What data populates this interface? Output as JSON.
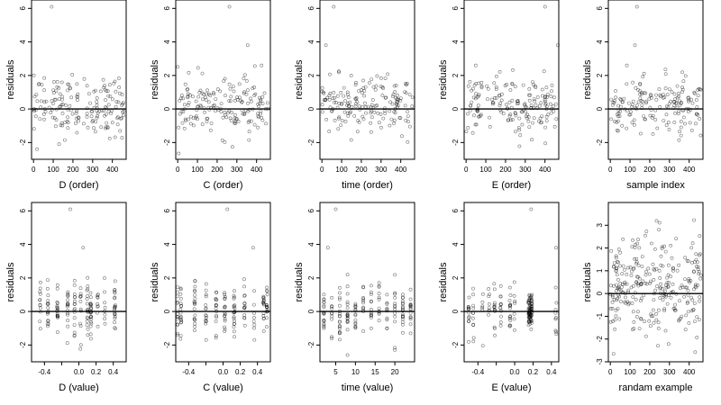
{
  "figure": {
    "ylabel": "residuals",
    "point_color": "#000000",
    "background": "#ffffff"
  },
  "chart_data": [
    {
      "type": "scatter",
      "title": "",
      "xlabel": "D (order)",
      "ylabel": "residuals",
      "xlim": [
        -10,
        470
      ],
      "ylim": [
        -3,
        6.5
      ],
      "xticks": [
        0,
        100,
        200,
        300,
        400
      ],
      "yticks": [
        -2,
        0,
        2,
        4,
        6
      ],
      "reference_line_y": 0,
      "grid": false,
      "n": 170,
      "outliers": [
        [
          92,
          6.1
        ],
        [
          130,
          -2.1
        ],
        [
          18,
          -2.4
        ]
      ],
      "distribution": "points cluster between -1.5 and 2.5 across x = 0–460, with a denser band near 0"
    },
    {
      "type": "scatter",
      "title": "",
      "xlabel": "C (order)",
      "ylabel": "residuals",
      "xlim": [
        -10,
        470
      ],
      "ylim": [
        -3,
        6.5
      ],
      "xticks": [
        0,
        100,
        200,
        300,
        400
      ],
      "yticks": [
        -2,
        0,
        2,
        4,
        6
      ],
      "reference_line_y": 0,
      "grid": false,
      "n": 170,
      "outliers": [
        [
          262,
          6.1
        ],
        [
          355,
          3.8
        ]
      ],
      "distribution": "points spread -2 to 2.5 across x = 0–460"
    },
    {
      "type": "scatter",
      "title": "",
      "xlabel": "time (order)",
      "ylabel": "residuals",
      "xlim": [
        -10,
        470
      ],
      "ylim": [
        -3,
        6.5
      ],
      "xticks": [
        0,
        100,
        200,
        300,
        400
      ],
      "yticks": [
        -2,
        0,
        2,
        4,
        6
      ],
      "reference_line_y": 0,
      "grid": false,
      "n": 170,
      "outliers": [
        [
          60,
          6.1
        ],
        [
          20,
          3.8
        ]
      ],
      "distribution": "points spread -2 to 2.5 across x = 0–460"
    },
    {
      "type": "scatter",
      "title": "",
      "xlabel": "E (order)",
      "ylabel": "residuals",
      "xlim": [
        -10,
        470
      ],
      "ylim": [
        -3,
        6.5
      ],
      "xticks": [
        0,
        100,
        200,
        300,
        400
      ],
      "yticks": [
        -2,
        0,
        2,
        4,
        6
      ],
      "reference_line_y": 0,
      "grid": false,
      "n": 170,
      "outliers": [
        [
          400,
          6.1
        ],
        [
          465,
          3.8
        ]
      ],
      "distribution": "points spread -2 to 2.5 across x = 0–460"
    },
    {
      "type": "scatter",
      "title": "",
      "xlabel": "sample index",
      "ylabel": "residuals",
      "xlim": [
        -10,
        470
      ],
      "ylim": [
        -3,
        6.5
      ],
      "xticks": [
        0,
        100,
        200,
        300,
        400
      ],
      "yticks": [
        -2,
        0,
        2,
        4,
        6
      ],
      "reference_line_y": 0,
      "grid": false,
      "n": 170,
      "outliers": [
        [
          135,
          6.1
        ],
        [
          125,
          3.8
        ]
      ],
      "distribution": "points spread -2 to 2.5 across x = 0–460"
    },
    {
      "type": "scatter",
      "title": "",
      "xlabel": "D (value)",
      "ylabel": "residuals",
      "xlim": [
        -0.55,
        0.55
      ],
      "ylim": [
        -3,
        6.5
      ],
      "xticks": [
        -0.4,
        -0.2,
        0.0,
        0.2,
        0.4
      ],
      "xticklabels": [
        "-0.4",
        "",
        "0.0",
        "0.2",
        "0.4"
      ],
      "yticks": [
        -2,
        0,
        2,
        4,
        6
      ],
      "reference_line_y": 0,
      "grid": false,
      "n": 170,
      "columns_x": [
        -0.45,
        -0.36,
        -0.25,
        -0.13,
        -0.05,
        0.02,
        0.1,
        0.14,
        0.22,
        0.3,
        0.42
      ],
      "outliers": [
        [
          -0.1,
          6.1
        ],
        [
          0.05,
          3.8
        ]
      ],
      "distribution": "points stacked in vertical columns at discrete x values, y from -2 to 2.5"
    },
    {
      "type": "scatter",
      "title": "",
      "xlabel": "C (value)",
      "ylabel": "residuals",
      "xlim": [
        -0.55,
        0.55
      ],
      "ylim": [
        -3,
        6.5
      ],
      "xticks": [
        -0.4,
        -0.2,
        0.0,
        0.2,
        0.4
      ],
      "xticklabels": [
        "-0.4",
        "",
        "0.0",
        "0.2",
        "0.4"
      ],
      "yticks": [
        -2,
        0,
        2,
        4,
        6
      ],
      "reference_line_y": 0,
      "grid": false,
      "n": 170,
      "columns_x": [
        -0.53,
        -0.49,
        -0.33,
        -0.2,
        -0.08,
        0.02,
        0.13,
        0.25,
        0.36,
        0.47,
        0.51
      ],
      "outliers": [
        [
          0.05,
          6.1
        ],
        [
          0.35,
          3.8
        ]
      ],
      "distribution": "points stacked in vertical columns at discrete x values, y from -2 to 2.5"
    },
    {
      "type": "scatter",
      "title": "",
      "xlabel": "time (value)",
      "ylabel": "residuals",
      "xlim": [
        1,
        25
      ],
      "ylim": [
        -3,
        6.5
      ],
      "xticks": [
        5,
        10,
        15,
        20
      ],
      "yticks": [
        -2,
        0,
        2,
        4,
        6
      ],
      "reference_line_y": 0,
      "grid": false,
      "n": 170,
      "columns_x": [
        2,
        4,
        6,
        8,
        10,
        12,
        14,
        16,
        18,
        20,
        22,
        24
      ],
      "outliers": [
        [
          5,
          6.1
        ],
        [
          3,
          3.8
        ]
      ],
      "distribution": "points stacked in vertical columns at discrete x values, y from -2 to 2.5"
    },
    {
      "type": "scatter",
      "title": "",
      "xlabel": "E (value)",
      "ylabel": "residuals",
      "xlim": [
        -0.55,
        0.48
      ],
      "ylim": [
        -3,
        6.5
      ],
      "xticks": [
        -0.4,
        -0.2,
        0.0,
        0.2,
        0.4
      ],
      "xticklabels": [
        "-0.4",
        "",
        "0.0",
        "0.2",
        "0.4"
      ],
      "yticks": [
        -2,
        0,
        2,
        4,
        6
      ],
      "reference_line_y": 0,
      "grid": false,
      "n": 170,
      "dense_cluster_x": 0.17,
      "outliers": [
        [
          0.18,
          6.1
        ],
        [
          0.45,
          3.8
        ]
      ],
      "distribution": "sparse columns on the left; very dense column at x ≈ 0.17, y from -1 to 1"
    },
    {
      "type": "scatter",
      "title": "",
      "xlabel": "randam example",
      "ylabel": "residuals",
      "xlim": [
        -10,
        470
      ],
      "ylim": [
        -3,
        4
      ],
      "xticks": [
        0,
        100,
        200,
        300,
        400
      ],
      "yticks": [
        -3,
        -2,
        -1,
        0,
        1,
        2,
        3
      ],
      "reference_line_y": 0,
      "grid": false,
      "n": 280,
      "outliers": [],
      "distribution": "points spread roughly uniformly/normally between -2.6 and 3.6 across x = 0–460"
    }
  ]
}
